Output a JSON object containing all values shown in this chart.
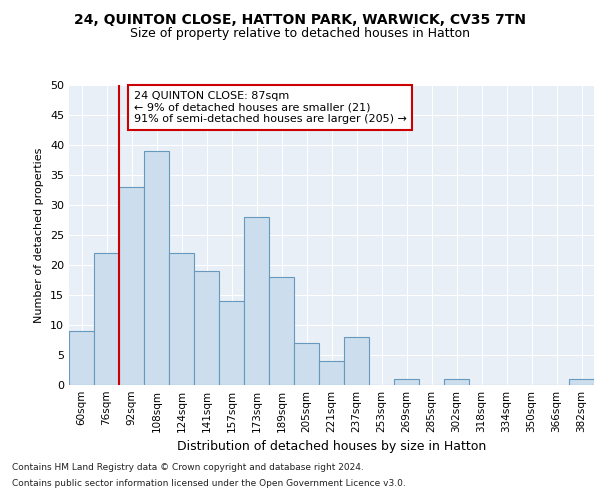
{
  "title1": "24, QUINTON CLOSE, HATTON PARK, WARWICK, CV35 7TN",
  "title2": "Size of property relative to detached houses in Hatton",
  "xlabel": "Distribution of detached houses by size in Hatton",
  "ylabel": "Number of detached properties",
  "categories": [
    "60sqm",
    "76sqm",
    "92sqm",
    "108sqm",
    "124sqm",
    "141sqm",
    "157sqm",
    "173sqm",
    "189sqm",
    "205sqm",
    "221sqm",
    "237sqm",
    "253sqm",
    "269sqm",
    "285sqm",
    "302sqm",
    "318sqm",
    "334sqm",
    "350sqm",
    "366sqm",
    "382sqm"
  ],
  "values": [
    9,
    22,
    33,
    39,
    22,
    19,
    14,
    28,
    18,
    7,
    4,
    8,
    0,
    1,
    0,
    1,
    0,
    0,
    0,
    0,
    1
  ],
  "bar_color": "#ccdded",
  "bar_edge_color": "#6699bb",
  "vline_x_index": 2,
  "vline_color": "#cc0000",
  "annotation_text": "24 QUINTON CLOSE: 87sqm\n← 9% of detached houses are smaller (21)\n91% of semi-detached houses are larger (205) →",
  "annotation_box_facecolor": "white",
  "annotation_box_edgecolor": "#cc0000",
  "ylim": [
    0,
    50
  ],
  "yticks": [
    0,
    5,
    10,
    15,
    20,
    25,
    30,
    35,
    40,
    45,
    50
  ],
  "background_color": "#e8eff7",
  "grid_color": "white",
  "footer1": "Contains HM Land Registry data © Crown copyright and database right 2024.",
  "footer2": "Contains public sector information licensed under the Open Government Licence v3.0.",
  "title1_fontsize": 10,
  "title2_fontsize": 9,
  "ylabel_fontsize": 8,
  "xlabel_fontsize": 9,
  "tick_fontsize": 8,
  "annotation_fontsize": 8,
  "footer_fontsize": 6.5
}
